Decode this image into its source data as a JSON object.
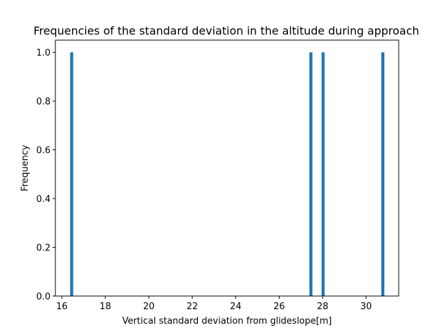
{
  "chart_data": {
    "type": "bar",
    "title": "Frequencies of the standard deviation in the altitude during approach",
    "xlabel": "Vertical standard deviation from glideslope[m]",
    "ylabel": "Frequency",
    "xlim": [
      15.7,
      31.5
    ],
    "ylim": [
      0.0,
      1.05
    ],
    "xticks": [
      16,
      18,
      20,
      22,
      24,
      26,
      28,
      30
    ],
    "yticks": [
      0.0,
      0.2,
      0.4,
      0.6,
      0.8,
      1.0
    ],
    "xtick_labels": [
      "16",
      "18",
      "20",
      "22",
      "24",
      "26",
      "28",
      "30"
    ],
    "ytick_labels": [
      "0.0",
      "0.2",
      "0.4",
      "0.6",
      "0.8",
      "1.0"
    ],
    "bins": [
      {
        "x0": 16.38,
        "x1": 16.52,
        "value": 1
      },
      {
        "x0": 27.39,
        "x1": 27.53,
        "value": 1
      },
      {
        "x0": 27.95,
        "x1": 28.09,
        "value": 1
      },
      {
        "x0": 30.7,
        "x1": 30.84,
        "value": 1
      }
    ],
    "bar_color": "#1f77b4",
    "grid": false,
    "legend": "none"
  }
}
